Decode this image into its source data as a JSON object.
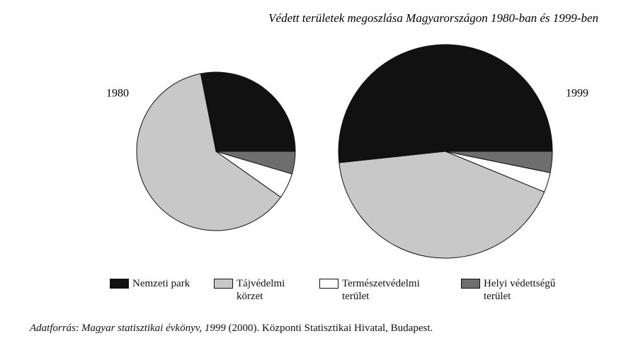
{
  "chart_data": {
    "type": "pie",
    "title": "Védett területek megoszlása Magyarországon 1980-ban és 1999-ben",
    "categories": [
      "Nemzeti park",
      "Tájvédelmi körzet",
      "Természetvédelmi terület",
      "Helyi védettségű terület"
    ],
    "colors": [
      "#111111",
      "#c8c8c8",
      "#ffffff",
      "#6e6e6e"
    ],
    "series": [
      {
        "name": "1980",
        "values": [
          28.1,
          62.1,
          5.2,
          4.6
        ]
      },
      {
        "name": "1999",
        "values": [
          51.7,
          42.1,
          3.0,
          3.2
        ]
      }
    ],
    "source": [
      "Adatforrás",
      ": ",
      "Magyar statisztikai évkönyv, 1999",
      " (2000). Központi Statisztikai Hivatal, Budapest."
    ]
  }
}
